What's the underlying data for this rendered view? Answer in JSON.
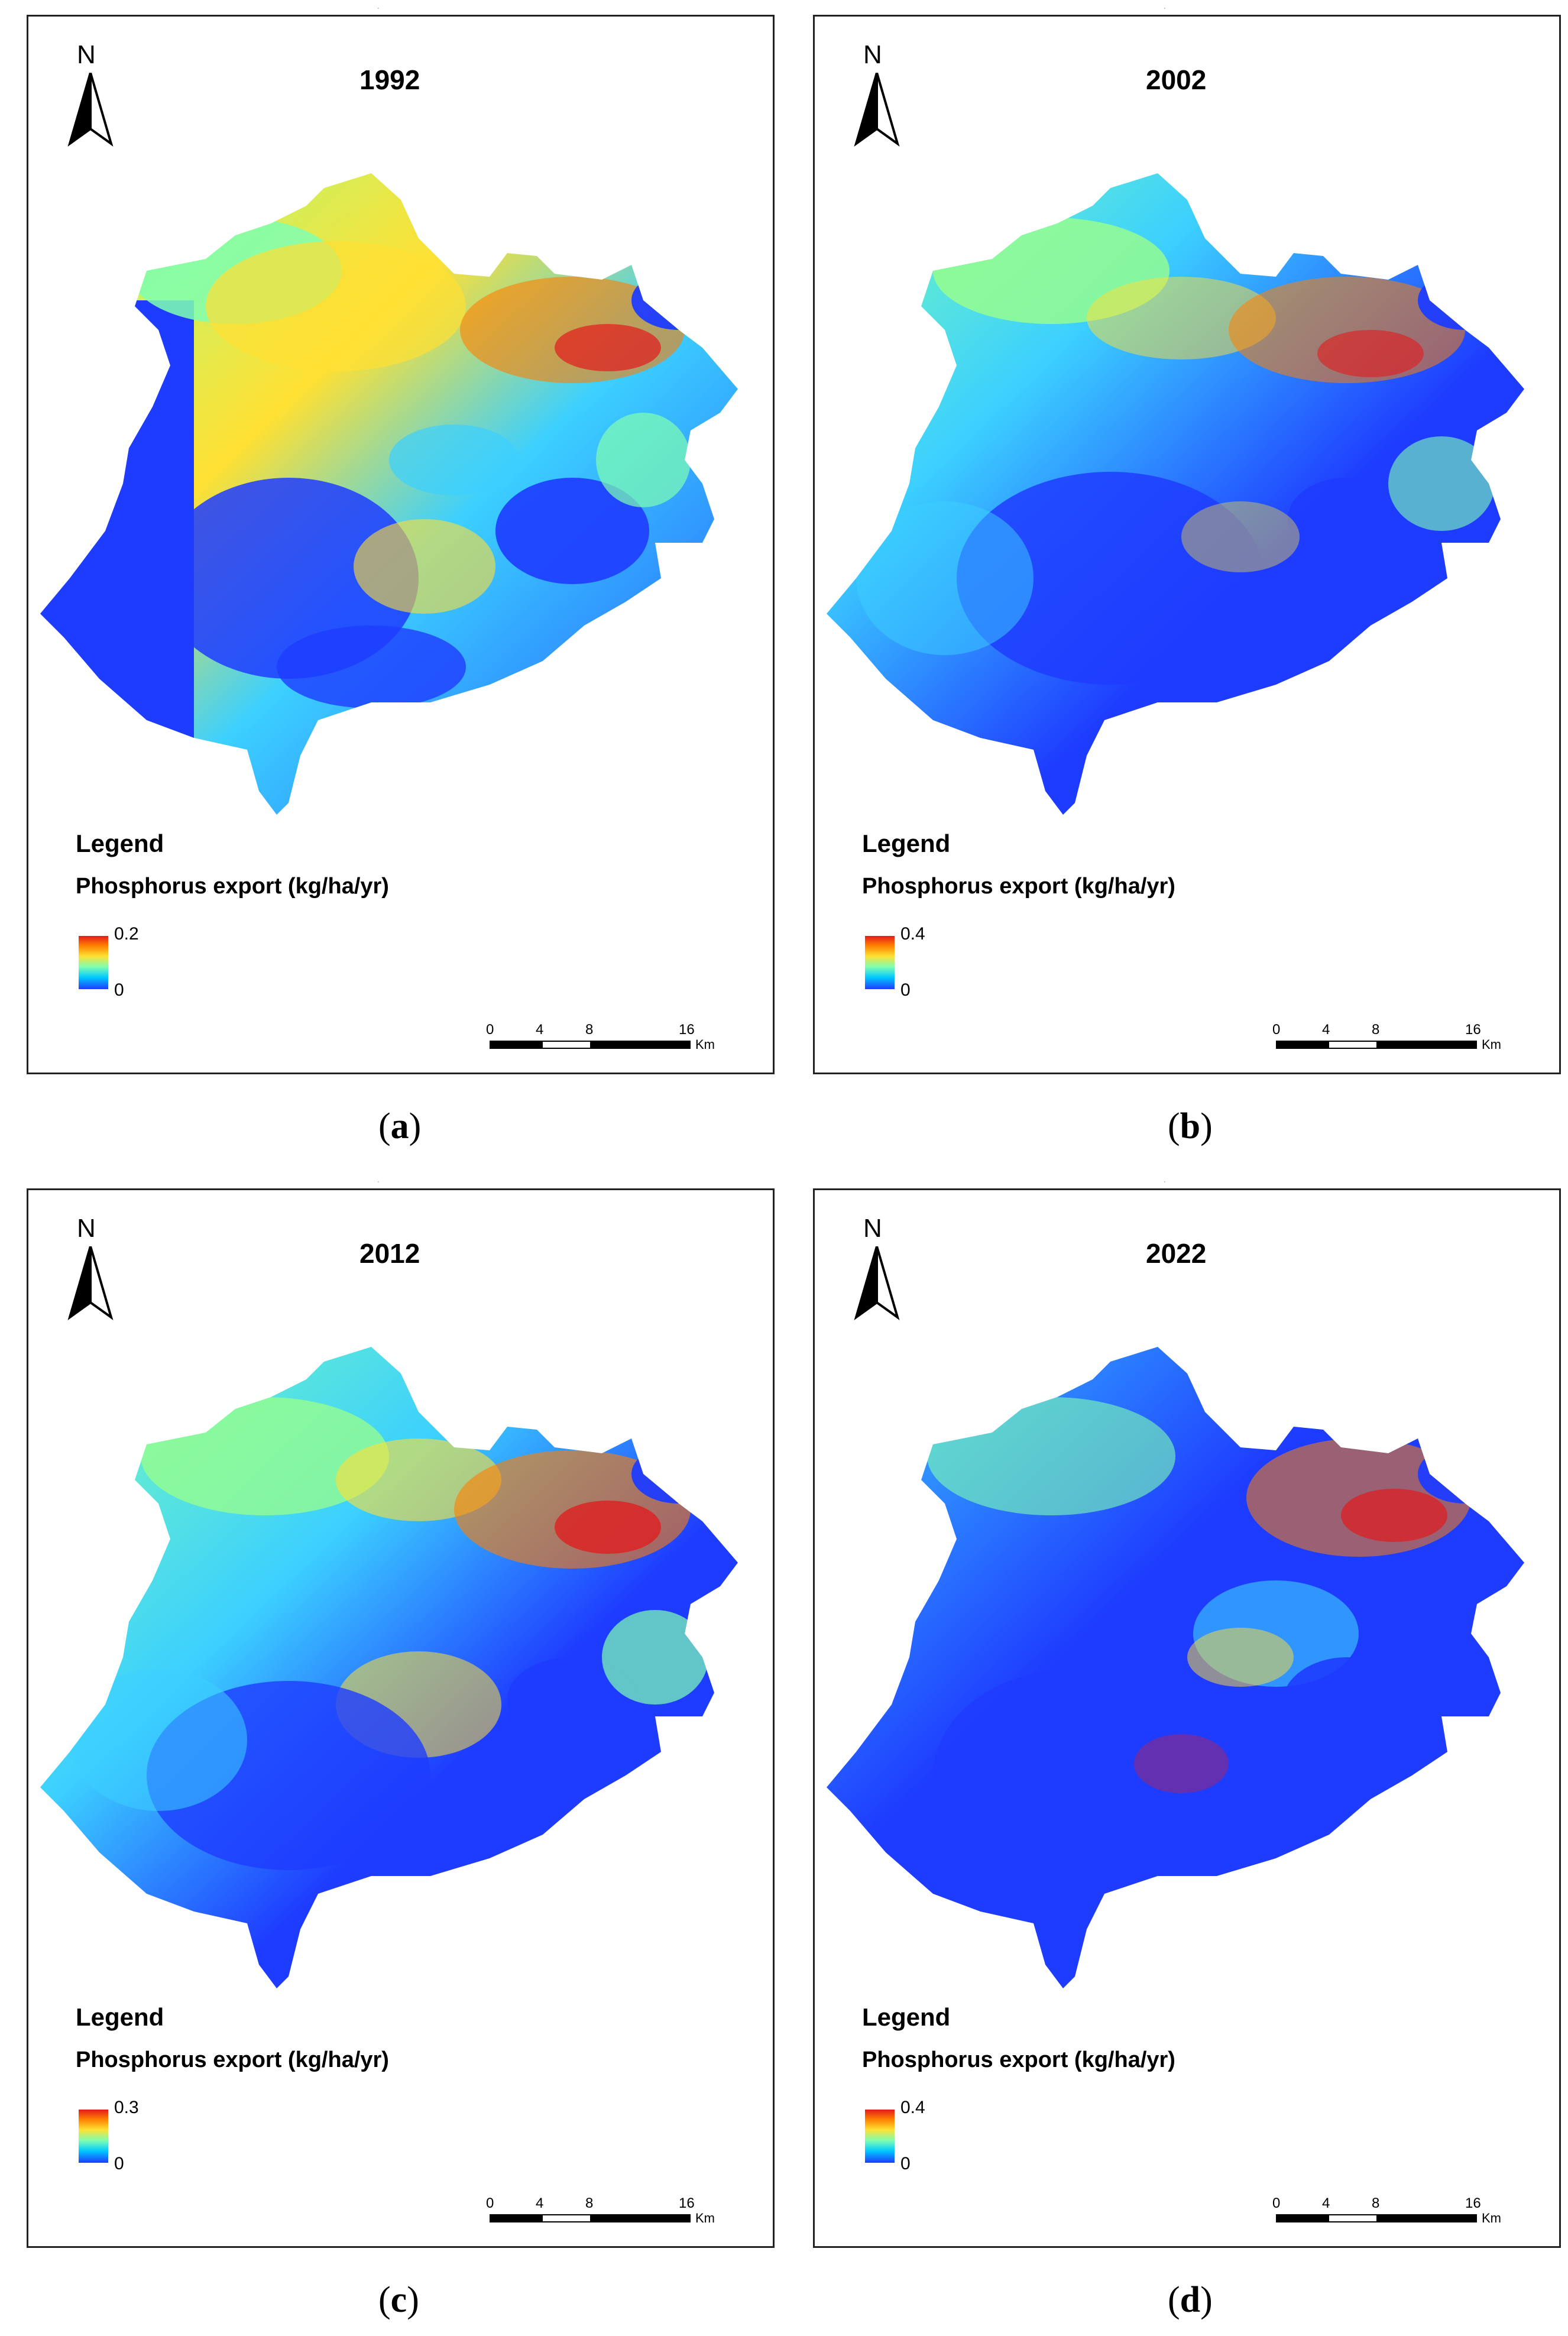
{
  "panels": [
    {
      "year": "1992",
      "legend_title": "Legend",
      "legend_subtitle": "Phosphorus export (kg/ha/yr)",
      "legend_max": "0.2",
      "legend_min": "0",
      "scale_ticks": [
        "0",
        "4",
        "8",
        "16"
      ],
      "scale_unit": "Km",
      "north_label": "N",
      "caption_letter": "a",
      "caption_open": "(",
      "caption_close": ")"
    },
    {
      "year": "2002",
      "legend_title": "Legend",
      "legend_subtitle": "Phosphorus export (kg/ha/yr)",
      "legend_max": "0.4",
      "legend_min": "0",
      "scale_ticks": [
        "0",
        "4",
        "8",
        "16"
      ],
      "scale_unit": "Km",
      "north_label": "N",
      "caption_letter": "b",
      "caption_open": "(",
      "caption_close": ")"
    },
    {
      "year": "2012",
      "legend_title": "Legend",
      "legend_subtitle": "Phosphorus export (kg/ha/yr)",
      "legend_max": "0.3",
      "legend_min": "0",
      "scale_ticks": [
        "0",
        "4",
        "8",
        "16"
      ],
      "scale_unit": "Km",
      "north_label": "N",
      "caption_letter": "c",
      "caption_open": "(",
      "caption_close": ")"
    },
    {
      "year": "2022",
      "legend_title": "Legend",
      "legend_subtitle": "Phosphorus export (kg/ha/yr)",
      "legend_max": "0.4",
      "legend_min": "0",
      "scale_ticks": [
        "0",
        "4",
        "8",
        "16"
      ],
      "scale_unit": "Km",
      "north_label": "N",
      "caption_letter": "d",
      "caption_open": "(",
      "caption_close": ")"
    }
  ],
  "colors": {
    "ramp_high": "#e31a1c",
    "ramp_mid_high": "#ffe033",
    "ramp_mid_low": "#7fffb0",
    "ramp_low": "#1e3cff",
    "frame": "#222222"
  },
  "icons": {
    "north_arrow": "north-arrow-icon"
  }
}
